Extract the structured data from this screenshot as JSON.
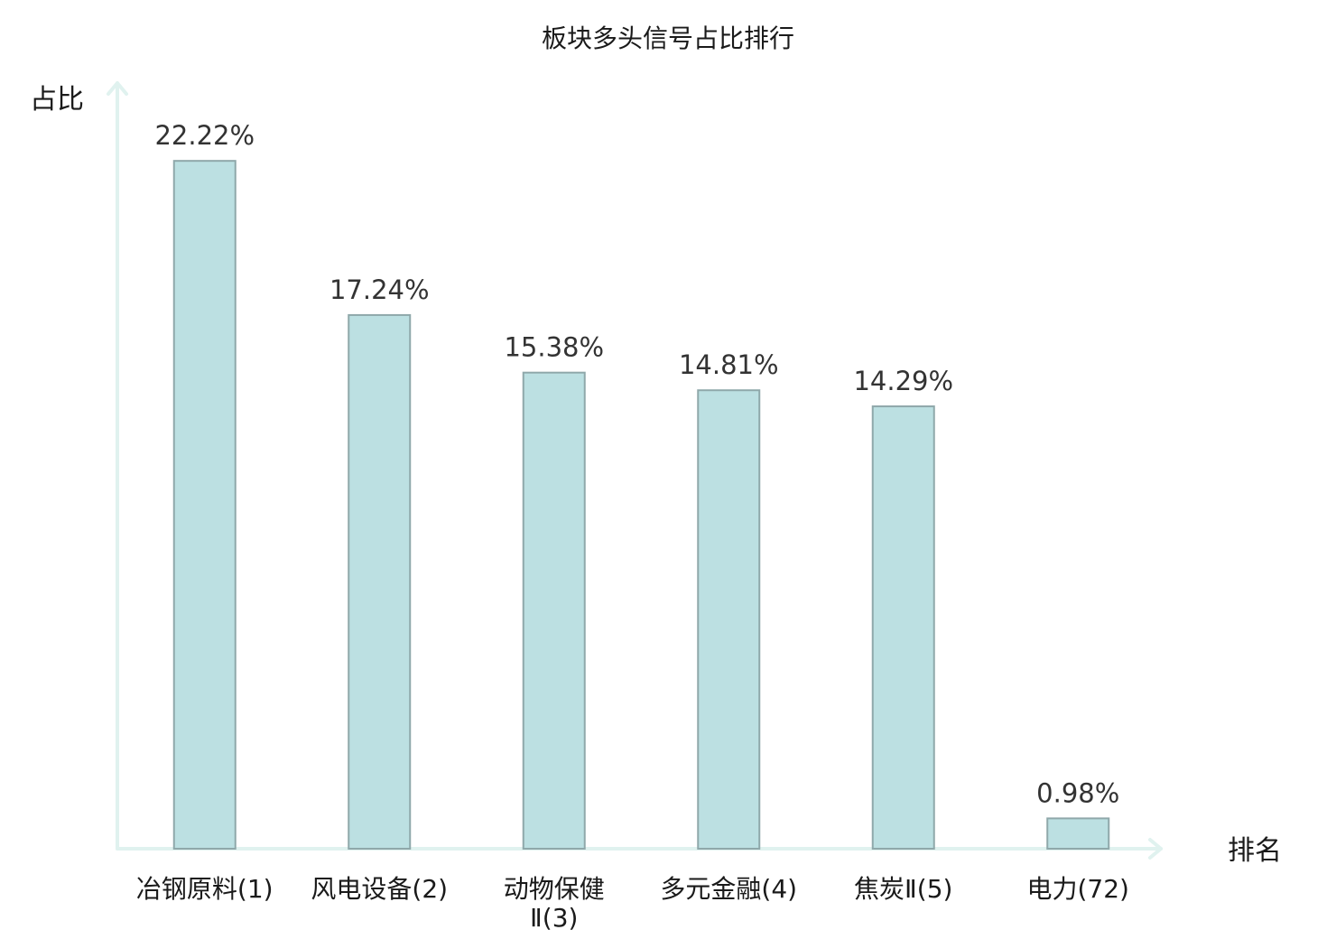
{
  "chart_data": {
    "type": "bar",
    "title": "板块多头信号占比排行",
    "xlabel": "排名",
    "ylabel": "占比",
    "categories": [
      [
        "冶钢原料(1)"
      ],
      [
        "风电设备(2)"
      ],
      [
        "动物保健",
        "Ⅱ(3)"
      ],
      [
        "多元金融(4)"
      ],
      [
        "焦炭Ⅱ(5)"
      ],
      [
        "电力(72)"
      ]
    ],
    "values": [
      22.22,
      17.24,
      15.38,
      14.81,
      14.29,
      0.98
    ],
    "data_labels": [
      "22.22%",
      "17.24%",
      "15.38%",
      "14.81%",
      "14.29%",
      "0.98%"
    ],
    "unit": "%",
    "ylim": [
      0,
      24.5
    ],
    "highlight_category_index": 5,
    "grid": false,
    "legend": "none",
    "colors": {
      "bar_fill": "#bce0e2",
      "bar_stroke": "#8fa8aa",
      "axis": "#e0f2ef",
      "highlight_text": "#e8141e",
      "text": "#1a1a1a"
    }
  }
}
